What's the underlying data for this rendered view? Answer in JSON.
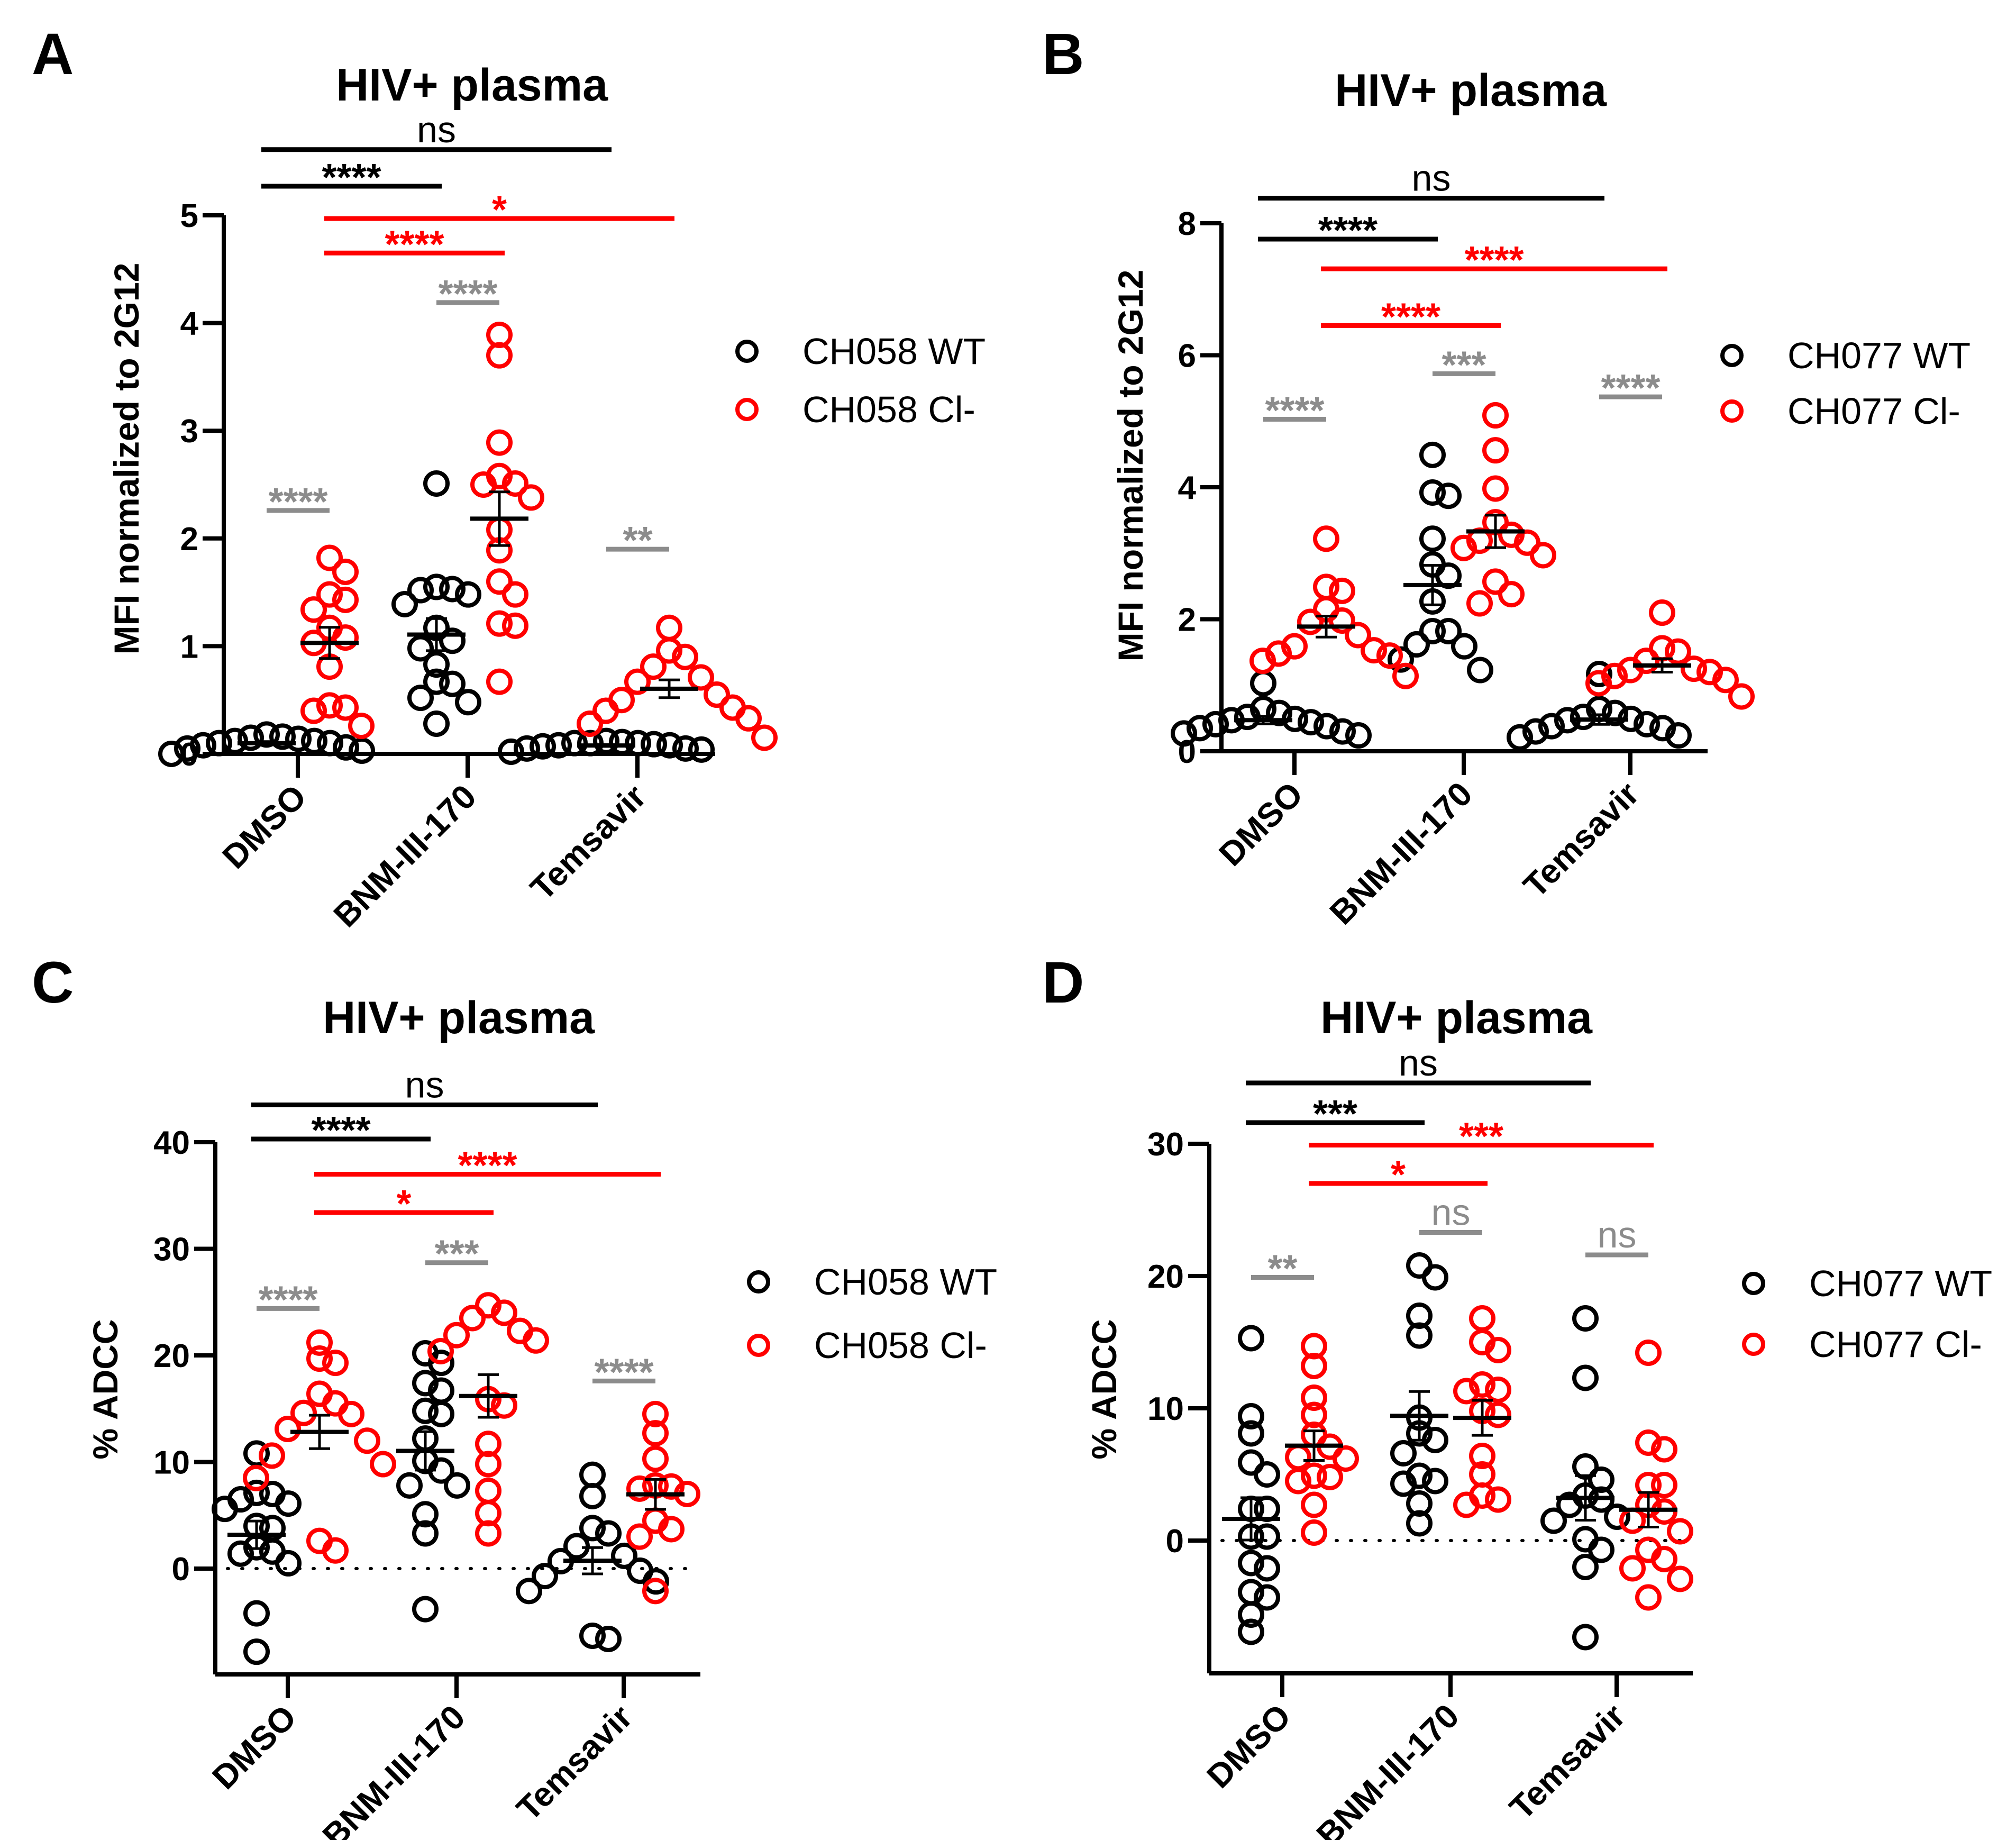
{
  "colors": {
    "wt": "#000000",
    "cl": "#ff0000",
    "within": "#8c8c8c"
  },
  "chart_data": [
    {
      "panel": "A",
      "type": "scatter",
      "title": "HIV+ plasma",
      "ylabel": "MFI normalized to 2G12",
      "ylim": [
        0,
        5
      ],
      "yticks": [
        0,
        1,
        2,
        3,
        4,
        5
      ],
      "zero_line": false,
      "categories": [
        "DMSO",
        "BNM-III-170",
        "Temsavir"
      ],
      "series": [
        {
          "name": "CH058 WT",
          "color": "#000000",
          "values": [
            [
              0.15,
              0.1,
              0.05,
              0.12,
              0.08,
              0.18,
              0.0,
              0.1,
              0.14,
              0.06,
              0.03,
              0.12,
              0.16
            ],
            [
              2.51,
              1.55,
              1.53,
              1.52,
              1.48,
              1.39,
              1.17,
              1.05,
              0.98,
              0.83,
              0.67,
              0.65,
              0.52,
              0.48,
              0.28
            ],
            [
              0.1,
              0.08,
              0.05,
              0.12,
              0.1,
              0.02,
              0.07,
              0.1,
              0.11,
              0.05,
              0.09,
              0.04,
              0.08
            ]
          ]
        },
        {
          "name": "CH058 Cl-",
          "color": "#ff0000",
          "values": [
            [
              1.82,
              1.69,
              1.48,
              1.43,
              1.34,
              1.17,
              1.08,
              1.03,
              0.81,
              0.45,
              0.43,
              0.4,
              0.26
            ],
            [
              3.89,
              3.7,
              2.89,
              2.58,
              2.51,
              2.5,
              2.38,
              2.08,
              1.89,
              1.6,
              1.48,
              1.21,
              1.19,
              0.67
            ],
            [
              1.17,
              0.96,
              0.9,
              0.81,
              0.71,
              0.67,
              0.55,
              0.5,
              0.43,
              0.4,
              0.33,
              0.28,
              0.15
            ]
          ]
        }
      ],
      "comparisons": [
        {
          "from": [
            0,
            0
          ],
          "to": [
            2,
            0
          ],
          "label": "ns",
          "y": 5.61,
          "color": "#000000"
        },
        {
          "from": [
            0,
            0
          ],
          "to": [
            1,
            0
          ],
          "label": "****",
          "y": 5.27,
          "color": "#000000"
        },
        {
          "from": [
            0,
            1
          ],
          "to": [
            2,
            1
          ],
          "label": "*",
          "y": 4.97,
          "color": "#ff0000"
        },
        {
          "from": [
            0,
            1
          ],
          "to": [
            1,
            1
          ],
          "label": "****",
          "y": 4.65,
          "color": "#ff0000"
        },
        {
          "from": [
            1,
            0
          ],
          "to": [
            1,
            1
          ],
          "label": "****",
          "y": 4.19,
          "color": "#8c8c8c"
        },
        {
          "from": [
            0,
            0
          ],
          "to": [
            0,
            1
          ],
          "label": "****",
          "y": 2.26,
          "color": "#8c8c8c"
        },
        {
          "from": [
            2,
            0
          ],
          "to": [
            2,
            1
          ],
          "label": "**",
          "y": 1.9,
          "color": "#8c8c8c"
        }
      ]
    },
    {
      "panel": "B",
      "type": "scatter",
      "title": "HIV+ plasma",
      "ylabel": "MFI normalized to 2G12",
      "ylim": [
        0,
        8
      ],
      "yticks": [
        0,
        2,
        4,
        6,
        8
      ],
      "zero_line": false,
      "categories": [
        "DMSO",
        "BNM-III-170",
        "Temsavir"
      ],
      "series": [
        {
          "name": "CH077 WT",
          "color": "#000000",
          "values": [
            [
              1.03,
              0.64,
              0.58,
              0.52,
              0.49,
              0.47,
              0.44,
              0.41,
              0.38,
              0.35,
              0.3,
              0.27,
              0.24
            ],
            [
              4.49,
              3.92,
              3.87,
              3.22,
              2.83,
              2.66,
              2.27,
              1.82,
              1.82,
              1.62,
              1.59,
              1.39,
              1.23
            ],
            [
              1.17,
              0.64,
              0.58,
              0.52,
              0.49,
              0.47,
              0.41,
              0.38,
              0.35,
              0.3,
              0.24,
              0.21
            ]
          ]
        },
        {
          "name": "CH077 Cl-",
          "color": "#ff0000",
          "values": [
            [
              3.22,
              2.49,
              2.43,
              2.15,
              1.98,
              1.96,
              1.76,
              1.59,
              1.53,
              1.48,
              1.45,
              1.37,
              1.14
            ],
            [
              5.09,
              4.56,
              3.98,
              3.47,
              3.28,
              3.19,
              3.16,
              3.08,
              2.97,
              2.57,
              2.38,
              2.24
            ],
            [
              2.1,
              1.56,
              1.51,
              1.37,
              1.25,
              1.23,
              1.2,
              1.14,
              1.08,
              1.03,
              0.83
            ]
          ]
        }
      ],
      "comparisons": [
        {
          "from": [
            0,
            0
          ],
          "to": [
            2,
            0
          ],
          "label": "ns",
          "y": 8.38,
          "color": "#000000"
        },
        {
          "from": [
            0,
            0
          ],
          "to": [
            1,
            0
          ],
          "label": "****",
          "y": 7.76,
          "color": "#000000"
        },
        {
          "from": [
            0,
            1
          ],
          "to": [
            2,
            1
          ],
          "label": "****",
          "y": 7.31,
          "color": "#ff0000"
        },
        {
          "from": [
            0,
            1
          ],
          "to": [
            1,
            1
          ],
          "label": "****",
          "y": 6.45,
          "color": "#ff0000"
        },
        {
          "from": [
            1,
            0
          ],
          "to": [
            1,
            1
          ],
          "label": "***",
          "y": 5.72,
          "color": "#8c8c8c"
        },
        {
          "from": [
            2,
            0
          ],
          "to": [
            2,
            1
          ],
          "label": "****",
          "y": 5.37,
          "color": "#8c8c8c"
        },
        {
          "from": [
            0,
            0
          ],
          "to": [
            0,
            1
          ],
          "label": "****",
          "y": 5.03,
          "color": "#8c8c8c"
        }
      ]
    },
    {
      "panel": "C",
      "type": "scatter",
      "title": "HIV+ plasma",
      "ylabel": "% ADCC",
      "ylim": [
        -9,
        40
      ],
      "yticks": [
        0,
        10,
        20,
        30,
        40
      ],
      "zero_line": true,
      "categories": [
        "DMSO",
        "BNM-III-170",
        "Temsavir"
      ],
      "series": [
        {
          "name": "CH058 WT",
          "color": "#000000",
          "values": [
            [
              10.8,
              7.1,
              7.0,
              6.5,
              6.1,
              5.6,
              4.0,
              3.8,
              2.0,
              1.6,
              1.4,
              0.5,
              -4.2,
              -7.8
            ],
            [
              20.2,
              19.3,
              17.4,
              16.7,
              14.8,
              14.5,
              12.2,
              10.1,
              9.2,
              7.8,
              7.8,
              5.1,
              3.3,
              -3.8
            ],
            [
              8.8,
              6.8,
              3.8,
              3.3,
              2.1,
              1.2,
              0.7,
              -0.2,
              -0.7,
              -1.2,
              -2.1,
              -6.3,
              -6.6
            ]
          ]
        },
        {
          "name": "CH058 Cl-",
          "color": "#ff0000",
          "values": [
            [
              21.2,
              19.7,
              19.3,
              16.4,
              15.5,
              14.6,
              14.5,
              13.1,
              12.0,
              10.6,
              9.8,
              8.5,
              2.6,
              1.7
            ],
            [
              24.7,
              24.0,
              23.5,
              22.3,
              21.9,
              21.4,
              20.4,
              15.9,
              15.3,
              11.7,
              9.8,
              7.3,
              5.2,
              3.3
            ],
            [
              14.5,
              12.7,
              10.3,
              7.8,
              7.7,
              7.5,
              7.0,
              4.5,
              3.7,
              3.0,
              -2.1
            ]
          ]
        }
      ],
      "comparisons": [
        {
          "from": [
            0,
            0
          ],
          "to": [
            2,
            0
          ],
          "label": "ns",
          "y": 43.5,
          "color": "#000000"
        },
        {
          "from": [
            0,
            0
          ],
          "to": [
            1,
            0
          ],
          "label": "****",
          "y": 40.3,
          "color": "#000000"
        },
        {
          "from": [
            0,
            1
          ],
          "to": [
            2,
            1
          ],
          "label": "****",
          "y": 37.0,
          "color": "#ff0000"
        },
        {
          "from": [
            0,
            1
          ],
          "to": [
            1,
            1
          ],
          "label": "*",
          "y": 33.4,
          "color": "#ff0000"
        },
        {
          "from": [
            1,
            0
          ],
          "to": [
            1,
            1
          ],
          "label": "***",
          "y": 28.7,
          "color": "#8c8c8c"
        },
        {
          "from": [
            0,
            0
          ],
          "to": [
            0,
            1
          ],
          "label": "****",
          "y": 24.4,
          "color": "#8c8c8c"
        },
        {
          "from": [
            2,
            0
          ],
          "to": [
            2,
            1
          ],
          "label": "****",
          "y": 17.6,
          "color": "#8c8c8c"
        }
      ]
    },
    {
      "panel": "D",
      "type": "scatter",
      "title": "HIV+ plasma",
      "ylabel": "% ADCC",
      "ylim": [
        -10,
        30
      ],
      "yticks": [
        0,
        10,
        20,
        30
      ],
      "zero_line": true,
      "categories": [
        "DMSO",
        "BNM-III-170",
        "Temsavir"
      ],
      "series": [
        {
          "name": "CH077 WT",
          "color": "#000000",
          "values": [
            [
              15.3,
              9.4,
              8.1,
              5.9,
              5.0,
              2.4,
              2.4,
              0.3,
              0.3,
              -1.7,
              -2.1,
              -3.9,
              -4.3,
              -5.6,
              -6.9
            ],
            [
              20.8,
              19.9,
              17.0,
              15.5,
              9.3,
              8.1,
              7.6,
              6.6,
              4.9,
              4.5,
              4.3,
              2.8,
              1.3
            ],
            [
              16.8,
              12.3,
              5.6,
              4.6,
              3.4,
              3.1,
              2.7,
              1.8,
              1.5,
              0.1,
              -0.7,
              -2.0,
              -7.3
            ]
          ]
        },
        {
          "name": "CH077 Cl-",
          "color": "#ff0000",
          "values": [
            [
              14.7,
              13.2,
              10.8,
              9.5,
              8.0,
              7.1,
              6.3,
              6.2,
              4.9,
              4.8,
              4.5,
              2.7,
              0.6
            ],
            [
              16.8,
              15.0,
              14.4,
              11.8,
              11.4,
              11.3,
              9.8,
              9.5,
              6.4,
              5.0,
              3.4,
              3.1,
              2.7
            ],
            [
              14.2,
              7.4,
              6.9,
              4.2,
              4.2,
              2.7,
              2.2,
              1.5,
              0.7,
              -0.7,
              -1.4,
              -2.1,
              -2.9,
              -4.3
            ]
          ]
        }
      ],
      "comparisons": [
        {
          "from": [
            0,
            0
          ],
          "to": [
            2,
            0
          ],
          "label": "ns",
          "y": 34.6,
          "color": "#000000"
        },
        {
          "from": [
            0,
            0
          ],
          "to": [
            1,
            0
          ],
          "label": "***",
          "y": 31.6,
          "color": "#000000"
        },
        {
          "from": [
            0,
            1
          ],
          "to": [
            2,
            1
          ],
          "label": "***",
          "y": 29.9,
          "color": "#ff0000"
        },
        {
          "from": [
            0,
            1
          ],
          "to": [
            1,
            1
          ],
          "label": "*",
          "y": 27.0,
          "color": "#ff0000"
        },
        {
          "from": [
            1,
            0
          ],
          "to": [
            1,
            1
          ],
          "label": "ns",
          "y": 23.3,
          "color": "#8c8c8c"
        },
        {
          "from": [
            2,
            0
          ],
          "to": [
            2,
            1
          ],
          "label": "ns",
          "y": 21.6,
          "color": "#8c8c8c"
        },
        {
          "from": [
            0,
            0
          ],
          "to": [
            0,
            1
          ],
          "label": "**",
          "y": 19.9,
          "color": "#8c8c8c"
        }
      ]
    }
  ]
}
